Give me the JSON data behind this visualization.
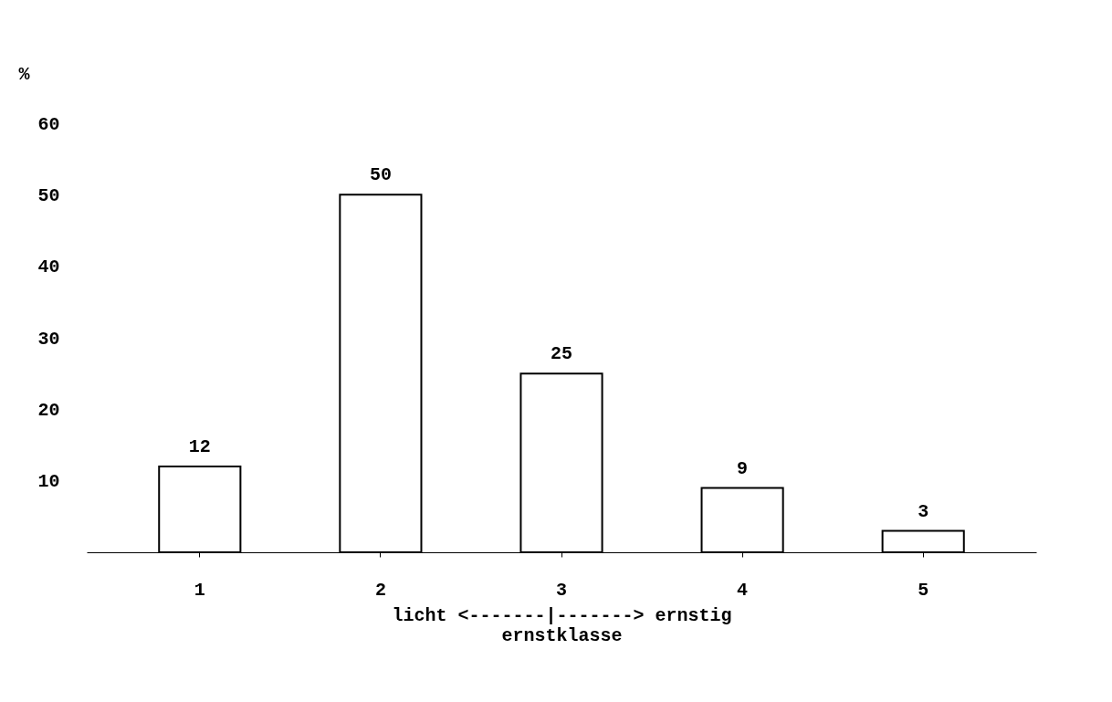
{
  "chart_data": {
    "type": "bar",
    "categories": [
      "1",
      "2",
      "3",
      "4",
      "5"
    ],
    "values": [
      12,
      50,
      25,
      9,
      3
    ],
    "color": "#ffffff",
    "ylim": [
      0,
      60
    ],
    "yticks": [
      10,
      20,
      30,
      40,
      50,
      60
    ],
    "ylabel": "%",
    "xlabel": "ernstklasse",
    "annotations": [
      "licht <-------|-------> ernstig"
    ],
    "data_labels": true,
    "grid": false
  }
}
